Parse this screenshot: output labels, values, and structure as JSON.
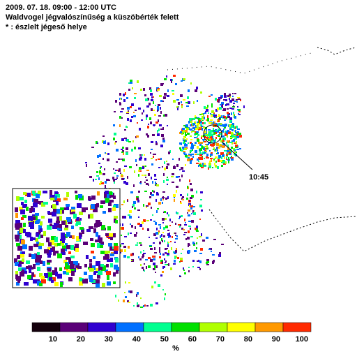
{
  "header": {
    "lines": [
      "2009. 07. 18. 09:00 - 12:00 UTC",
      "Waldvogel jégvalószínűség a küszöbérték felett",
      "* : észlelt jégeső helye"
    ]
  },
  "annotation": "10:45",
  "colorbar": {
    "colors": [
      "#14000c",
      "#5a0078",
      "#3000d0",
      "#0070ff",
      "#00ff90",
      "#00e000",
      "#b0ff00",
      "#ffff00",
      "#ff9900",
      "#ff2a00"
    ],
    "ticks": [
      10,
      20,
      30,
      40,
      50,
      60,
      70,
      80,
      90,
      100
    ],
    "unit": "%"
  }
}
